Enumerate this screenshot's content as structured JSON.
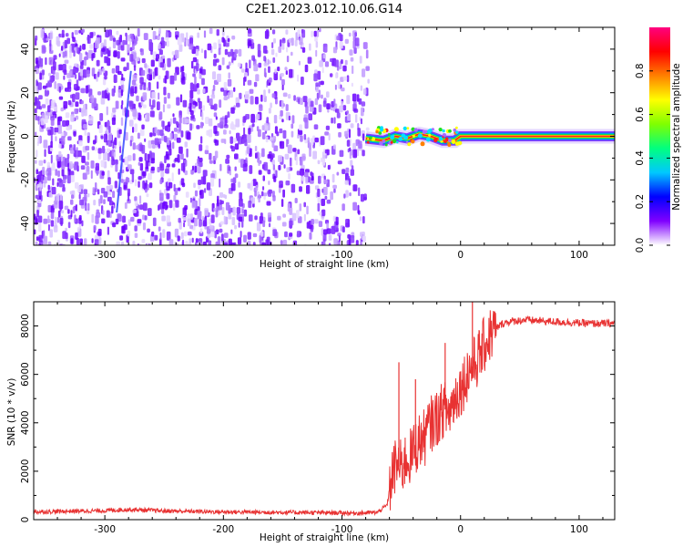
{
  "figure": {
    "title": "C2E1.2023.012.10.06.G14"
  },
  "chart_data": [
    {
      "type": "heatmap",
      "title": "C2E1.2023.012.10.06.G14",
      "xlabel": "Height of straight line (km)",
      "ylabel": "Frequency (Hz)",
      "xlim": [
        -360,
        130
      ],
      "ylim": [
        -50,
        50
      ],
      "x_ticks": [
        -300,
        -200,
        -100,
        0,
        100
      ],
      "x_tick_labels": [
        "-300",
        "-200",
        "-100",
        "0",
        "100"
      ],
      "y_ticks": [
        -40,
        -20,
        0,
        20,
        40
      ],
      "y_tick_labels": [
        "-40",
        "-20",
        "0",
        "20",
        "40"
      ],
      "colorbar": {
        "label": "Normalized spectral amplitude",
        "range": [
          0,
          1
        ],
        "ticks": [
          0,
          0.2,
          0.4,
          0.6,
          0.8
        ],
        "tick_labels": [
          "0.0",
          "0.2",
          "0.4",
          "0.6",
          "0.8"
        ],
        "colormap": [
          "#ffffff",
          "#8000ff",
          "#0000ff",
          "#00c8ff",
          "#00ff80",
          "#80ff00",
          "#ffff00",
          "#ff8000",
          "#ff0000",
          "#ff0080"
        ]
      },
      "features": {
        "noise_region_x": [
          -360,
          -78
        ],
        "noise_amplitude_typical": 0.1,
        "faint_streak": {
          "x": [
            -290,
            -278
          ],
          "y": [
            -35,
            30
          ]
        },
        "tone_line": {
          "x": [
            -80,
            -65,
            -55,
            -45,
            -35,
            -25,
            -15,
            -5,
            0,
            130
          ],
          "y": [
            -1,
            -2,
            0,
            -1,
            1,
            0,
            -2,
            -2,
            0,
            0
          ],
          "peak_amplitude": 0.95
        }
      },
      "grid": false
    },
    {
      "type": "line",
      "xlabel": "Height of straight line (km)",
      "ylabel": "SNR (10 * v/v)",
      "xlim": [
        -360,
        130
      ],
      "ylim": [
        0,
        9000
      ],
      "x_ticks": [
        -300,
        -200,
        -100,
        0,
        100
      ],
      "x_tick_labels": [
        "-300",
        "-200",
        "-100",
        "0",
        "100"
      ],
      "y_ticks": [
        0,
        2000,
        4000,
        6000,
        8000
      ],
      "y_tick_labels": [
        "0",
        "2000",
        "4000",
        "6000",
        "8000"
      ],
      "line_color": "#e83232",
      "series": [
        {
          "x": [
            -360,
            -330,
            -300,
            -280,
            -250,
            -200,
            -150,
            -100,
            -85,
            -70,
            -62,
            -58,
            -54,
            -50,
            -46,
            -42,
            -38,
            -34,
            -30,
            -26,
            -22,
            -18,
            -14,
            -10,
            -6,
            -2,
            2,
            6,
            10,
            14,
            18,
            22,
            26,
            30,
            34,
            38,
            45,
            55,
            70,
            90,
            110,
            130
          ],
          "y": [
            320,
            350,
            370,
            420,
            360,
            320,
            300,
            280,
            270,
            300,
            600,
            1800,
            2300,
            2100,
            2500,
            2600,
            3000,
            3300,
            3400,
            3900,
            4100,
            4300,
            4600,
            4400,
            4900,
            5300,
            5600,
            6100,
            6300,
            6600,
            7000,
            7400,
            7700,
            7900,
            8050,
            8150,
            8200,
            8250,
            8200,
            8150,
            8100,
            8100
          ]
        }
      ],
      "spikes": [
        {
          "x": 10,
          "y": 9000
        },
        {
          "x": -13,
          "y": 7300
        },
        {
          "x": -38,
          "y": 5800
        },
        {
          "x": -52,
          "y": 6500
        }
      ],
      "noise_band_after_x": -60,
      "grid": false
    }
  ]
}
